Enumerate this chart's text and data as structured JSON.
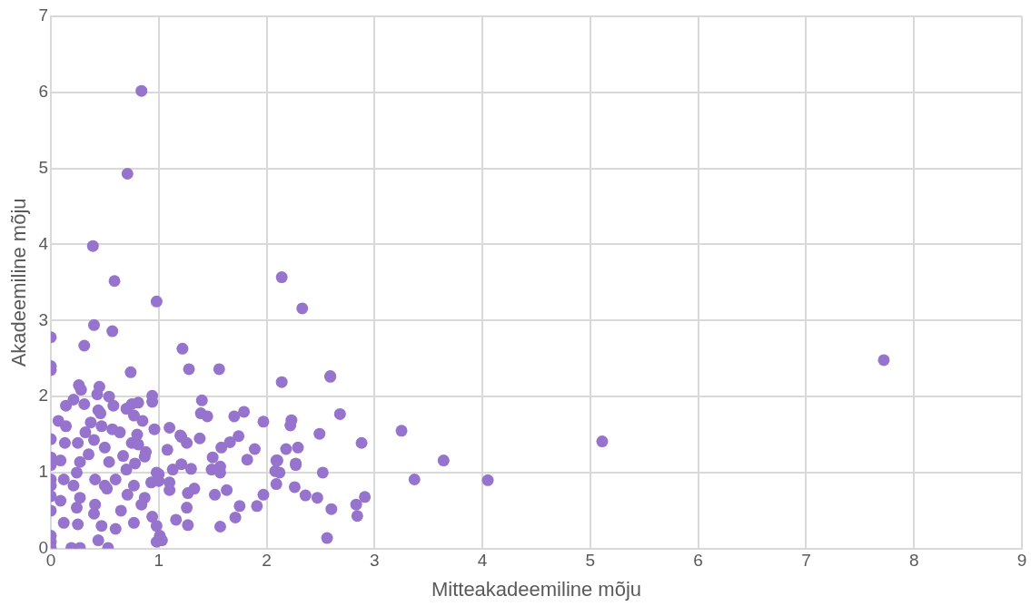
{
  "chart_data": {
    "type": "scatter",
    "xlabel": "Mitteakadeemiline mõju",
    "ylabel": "Akadeemiline mõju",
    "xlim": [
      0,
      9
    ],
    "ylim": [
      0,
      7
    ],
    "xticks": [
      0,
      1,
      2,
      3,
      4,
      5,
      6,
      7,
      8,
      9
    ],
    "yticks": [
      0,
      1,
      2,
      3,
      4,
      5,
      6,
      7
    ],
    "grid": true,
    "legend": false,
    "marker": "circle",
    "series": [
      {
        "color": "#9673cc",
        "x": [
          0.84,
          0.71,
          0.39,
          0.59,
          0.98,
          2.14,
          2.33,
          7.72,
          5.11,
          4.05,
          3.64,
          3.37,
          3.25,
          0,
          0,
          0,
          0.31,
          0.4,
          0.57,
          0.74,
          1.22,
          1.28,
          1.56,
          2.14,
          2.59,
          0.26,
          0.28,
          0.45,
          0.43,
          0.54,
          0.58,
          0.21,
          0.14,
          0.31,
          0.44,
          0.46,
          0.7,
          0.75,
          0.81,
          0.77,
          0.94,
          0.94,
          1.4,
          1.39,
          1.45,
          1.7,
          1.79,
          1.97,
          2.23,
          2.22,
          0.07,
          0.14,
          0.37,
          0.32,
          0.47,
          0.57,
          0.64,
          0.8,
          0.85,
          0.96,
          1.1,
          1.2,
          1.26,
          1.38,
          1.58,
          1.66,
          1.74,
          1.89,
          1.82,
          2.18,
          2.29,
          2.1,
          2.27,
          0,
          0.13,
          0.25,
          0.4,
          0.5,
          0.75,
          0.81,
          0.88,
          0.87,
          1.08,
          1.21,
          0,
          0,
          0.09,
          0.27,
          0.35,
          0.54,
          0.67,
          0.78,
          0.7,
          0.98,
          1.13,
          1.21,
          1.3,
          1.5,
          1.49,
          1.57,
          1.57,
          2.09,
          2.08,
          2.12,
          2.27,
          0,
          0,
          0.12,
          0.24,
          0.21,
          0.41,
          0.5,
          0.6,
          0.52,
          0.71,
          0.77,
          0.87,
          0.93,
          1.0,
          1.0,
          1.1,
          1.1,
          1.27,
          1.33,
          1.52,
          1.63,
          2.09,
          2.26,
          2.36,
          0,
          0,
          0.09,
          0.12,
          0.24,
          0.27,
          0.41,
          0.4,
          0.25,
          0.47,
          0.6,
          0.44,
          0.65,
          0.77,
          0.84,
          0.94,
          0.98,
          1.01,
          0.98,
          1.03,
          1.16,
          1.26,
          1.27,
          1.57,
          1.71,
          1.75,
          1.91,
          1.97,
          0,
          0,
          0,
          0.19,
          0.27,
          0.53,
          2.52,
          2.47,
          2.6,
          2.56,
          2.83,
          2.84,
          2.91,
          2.88,
          2.68,
          2.49,
          2.59
        ],
        "values": [
          6.02,
          4.93,
          3.98,
          3.52,
          3.25,
          3.57,
          3.16,
          2.48,
          1.41,
          0.9,
          1.16,
          0.91,
          1.55,
          2.78,
          2.4,
          2.35,
          2.67,
          2.94,
          2.86,
          2.32,
          2.63,
          2.36,
          2.36,
          2.19,
          2.27,
          2.15,
          2.09,
          2.13,
          2.03,
          2.0,
          1.88,
          1.96,
          1.88,
          1.9,
          1.82,
          1.78,
          1.84,
          1.9,
          1.92,
          1.75,
          2.01,
          1.93,
          1.95,
          1.78,
          1.74,
          1.74,
          1.8,
          1.67,
          1.69,
          1.62,
          1.68,
          1.61,
          1.66,
          1.53,
          1.61,
          1.57,
          1.53,
          1.5,
          1.68,
          1.57,
          1.59,
          1.49,
          1.39,
          1.45,
          1.33,
          1.4,
          1.48,
          1.31,
          1.17,
          1.31,
          1.33,
          1.16,
          1.12,
          1.44,
          1.39,
          1.39,
          1.43,
          1.33,
          1.39,
          1.37,
          1.27,
          1.21,
          1.3,
          1.47,
          1.2,
          1.1,
          1.16,
          1.14,
          1.24,
          1.14,
          1.22,
          1.12,
          1.04,
          1.0,
          1.04,
          1.11,
          1.05,
          1.2,
          1.04,
          1.08,
          1.0,
          1.16,
          1.02,
          1.0,
          1.1,
          0.91,
          0.83,
          0.91,
          1.0,
          0.83,
          0.91,
          0.83,
          0.91,
          0.79,
          0.71,
          0.83,
          0.67,
          0.87,
          0.98,
          0.89,
          0.87,
          0.77,
          0.73,
          0.79,
          0.71,
          0.77,
          0.85,
          0.81,
          0.7,
          0.69,
          0.5,
          0.63,
          0.34,
          0.54,
          0.67,
          0.58,
          0.46,
          0.32,
          0.3,
          0.26,
          0.11,
          0.5,
          0.34,
          0.58,
          0.42,
          0.3,
          0.17,
          0.09,
          0.11,
          0.38,
          0.54,
          0.31,
          0.29,
          0.41,
          0.56,
          0.56,
          0.71,
          0.17,
          0.09,
          0.01,
          0.01,
          0.01,
          0.01,
          1.0,
          0.67,
          0.52,
          0.14,
          0.58,
          0.43,
          0.68,
          1.39,
          1.77,
          1.51,
          2.26
        ]
      }
    ]
  }
}
